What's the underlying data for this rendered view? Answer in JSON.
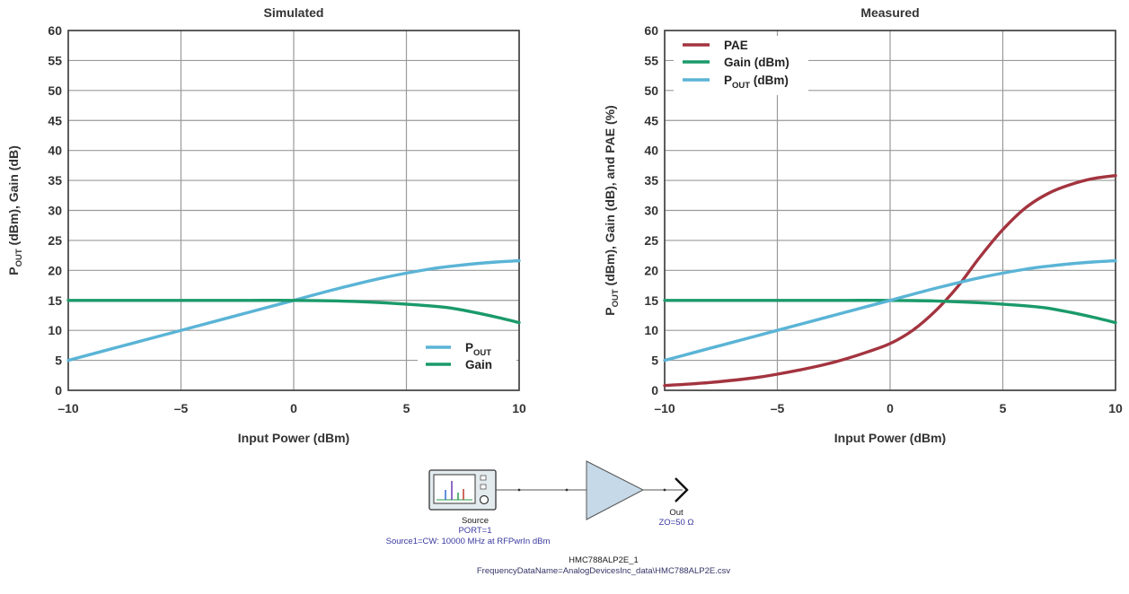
{
  "chart_data": [
    {
      "type": "line",
      "title": "Simulated",
      "xlabel": "Input Power (dBm)",
      "ylabel": {
        "main": "P",
        "sub": "OUT",
        "rest": " (dBm), Gain (dB)"
      },
      "xlim": [
        -10,
        10
      ],
      "ylim": [
        0,
        60
      ],
      "xticks": [
        -10,
        -5,
        0,
        5,
        10
      ],
      "xtick_labels": [
        "–10",
        "–5",
        "0",
        "5",
        "10"
      ],
      "yticks": [
        0,
        5,
        10,
        15,
        20,
        25,
        30,
        35,
        40,
        45,
        50,
        55,
        60
      ],
      "grid": true,
      "legend_position": "bottom-right",
      "series": [
        {
          "name": "P",
          "name_sub": "OUT",
          "color": "#5ab4d6",
          "x": [
            -10,
            -8,
            -6,
            -4,
            -2,
            0,
            2,
            4,
            6,
            7,
            8,
            9,
            10
          ],
          "y": [
            5.0,
            7.0,
            9.0,
            11.0,
            13.0,
            15.0,
            17.0,
            18.8,
            20.2,
            20.7,
            21.1,
            21.4,
            21.6
          ]
        },
        {
          "name": "Gain",
          "name_sub": "",
          "color": "#1a9a6a",
          "x": [
            -10,
            -8,
            -6,
            -4,
            -2,
            0,
            2,
            4,
            6,
            7,
            8,
            9,
            10
          ],
          "y": [
            15.0,
            15.0,
            15.0,
            15.0,
            15.0,
            15.0,
            14.9,
            14.6,
            14.1,
            13.7,
            13.0,
            12.2,
            11.3
          ]
        }
      ]
    },
    {
      "type": "line",
      "title": "Measured",
      "xlabel": "Input Power (dBm)",
      "ylabel": {
        "main": "P",
        "sub": "OUT",
        "rest": " (dBm), Gain (dB), and PAE (%)"
      },
      "xlim": [
        -10,
        10
      ],
      "ylim": [
        0,
        60
      ],
      "xticks": [
        -10,
        -5,
        0,
        5,
        10
      ],
      "xtick_labels": [
        "–10",
        "–5",
        "0",
        "5",
        "10"
      ],
      "yticks": [
        0,
        5,
        10,
        15,
        20,
        25,
        30,
        35,
        40,
        45,
        50,
        55,
        60
      ],
      "grid": true,
      "legend_position": "top-left",
      "series": [
        {
          "name": "PAE",
          "name_sub": "",
          "color": "#a3343f",
          "x": [
            -10,
            -8,
            -6,
            -5,
            -4,
            -3,
            -2,
            -1,
            0,
            1,
            2,
            3,
            4,
            5,
            6,
            7,
            8,
            9,
            10
          ],
          "y": [
            0.8,
            1.3,
            2.1,
            2.7,
            3.4,
            4.2,
            5.2,
            6.4,
            7.8,
            10.0,
            13.2,
            17.3,
            22.3,
            26.8,
            30.4,
            32.8,
            34.3,
            35.3,
            35.8
          ]
        },
        {
          "name": "Gain (dBm)",
          "name_sub": "",
          "color": "#1a9a6a",
          "x": [
            -10,
            -8,
            -6,
            -4,
            -2,
            0,
            2,
            4,
            6,
            7,
            8,
            9,
            10
          ],
          "y": [
            15.0,
            15.0,
            15.0,
            15.0,
            15.0,
            15.0,
            14.9,
            14.6,
            14.1,
            13.7,
            13.0,
            12.2,
            11.3
          ]
        },
        {
          "name": "P",
          "name_sub": "OUT",
          "name_rest": " (dBm)",
          "color": "#5ab4d6",
          "x": [
            -10,
            -8,
            -6,
            -4,
            -2,
            0,
            2,
            4,
            6,
            7,
            8,
            9,
            10
          ],
          "y": [
            5.0,
            7.0,
            9.0,
            11.0,
            13.0,
            15.0,
            17.0,
            18.8,
            20.2,
            20.7,
            21.1,
            21.4,
            21.6
          ]
        }
      ]
    }
  ],
  "schematic": {
    "source_label": "Source",
    "source_port": "PORT=1",
    "source_desc": "Source1=CW: 10000 MHz at RFPwrIn dBm",
    "amp_name": "HMC788ALP2E_1",
    "amp_data": "FrequencyDataName=AnalogDevicesInc_data\\HMC788ALP2E.csv",
    "out_label": "Out",
    "out_impedance": "ZO=50 Ω"
  }
}
